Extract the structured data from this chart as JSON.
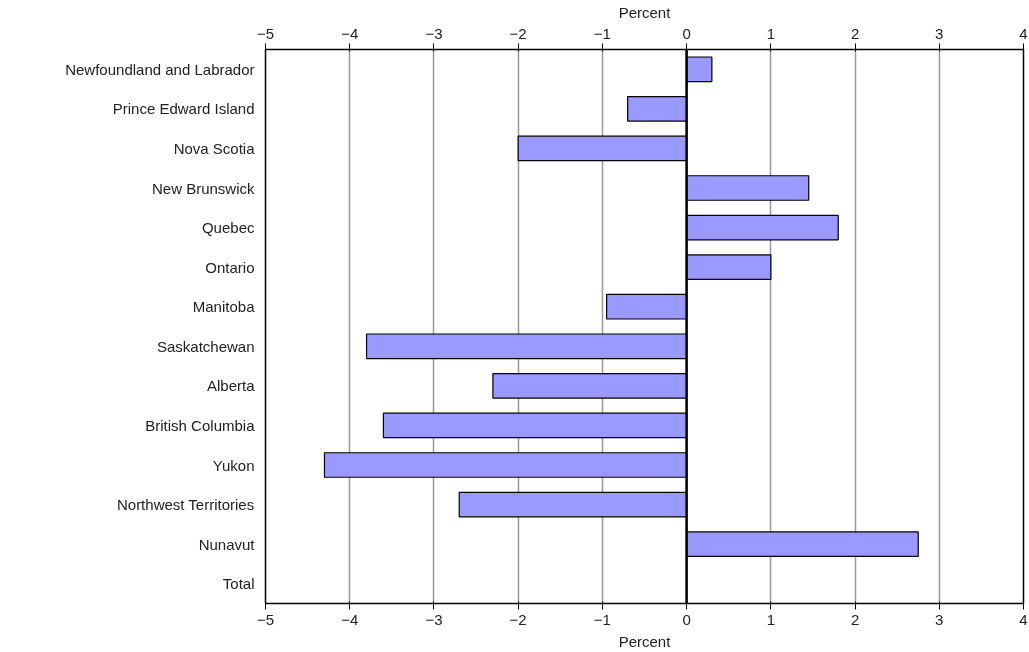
{
  "chart_data": {
    "type": "bar",
    "orientation": "horizontal",
    "xlabel": "Percent",
    "x2label": "Percent",
    "categories": [
      "Newfoundland and Labrador",
      "Prince Edward Island",
      "Nova Scotia",
      "New Brunswick",
      "Quebec",
      "Ontario",
      "Manitoba",
      "Saskatchewan",
      "Alberta",
      "British Columbia",
      "Yukon",
      "Northwest Territories",
      "Nunavut",
      "Total"
    ],
    "values": [
      0.3,
      -0.7,
      -2.0,
      1.45,
      1.8,
      1.0,
      -0.95,
      -3.8,
      -2.3,
      -3.6,
      -4.3,
      -2.7,
      2.75,
      null
    ],
    "color": "#9999ff",
    "xlim": [
      -5,
      4
    ],
    "xticks": [
      -5,
      -4,
      -3,
      -2,
      -1,
      0,
      1,
      2,
      3,
      4
    ],
    "x2lim": [
      -5,
      4
    ],
    "x2ticks": [
      -5,
      -4,
      -3,
      -2,
      -1,
      0,
      1,
      2,
      3,
      4
    ],
    "grid": "x"
  }
}
